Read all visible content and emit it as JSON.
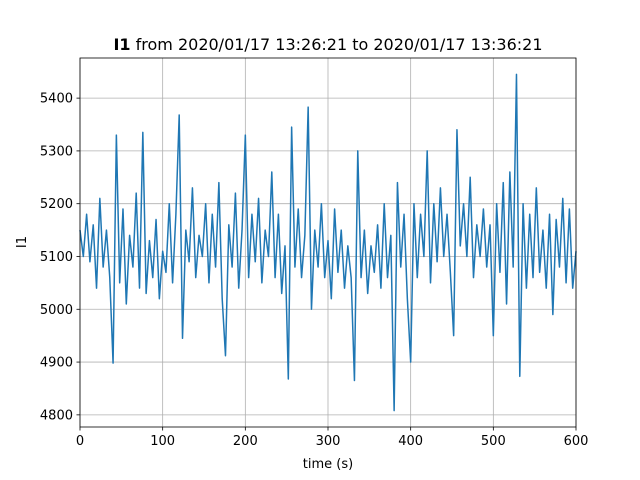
{
  "chart_data": {
    "type": "line",
    "title": {
      "bold": "I1",
      "text": "from 2020/01/17 13:26:21 to 2020/01/17 13:36:21"
    },
    "xlabel": "time (s)",
    "ylabel": "I1",
    "x": [
      0,
      4,
      8,
      12,
      16,
      20,
      24,
      28,
      32,
      36,
      40,
      44,
      48,
      52,
      56,
      60,
      64,
      68,
      72,
      76,
      80,
      84,
      88,
      92,
      96,
      100,
      104,
      108,
      112,
      116,
      120,
      124,
      128,
      132,
      136,
      140,
      144,
      148,
      152,
      156,
      160,
      164,
      168,
      172,
      176,
      180,
      184,
      188,
      192,
      196,
      200,
      204,
      208,
      212,
      216,
      220,
      224,
      228,
      232,
      236,
      240,
      244,
      248,
      252,
      256,
      260,
      264,
      268,
      272,
      276,
      280,
      284,
      288,
      292,
      296,
      300,
      304,
      308,
      312,
      316,
      320,
      324,
      328,
      332,
      336,
      340,
      344,
      348,
      352,
      356,
      360,
      364,
      368,
      372,
      376,
      380,
      384,
      388,
      392,
      396,
      400,
      404,
      408,
      412,
      416,
      420,
      424,
      428,
      432,
      436,
      440,
      444,
      448,
      452,
      456,
      460,
      464,
      468,
      472,
      476,
      480,
      484,
      488,
      492,
      496,
      500,
      504,
      508,
      512,
      516,
      520,
      524,
      528,
      532,
      536,
      540,
      544,
      548,
      552,
      556,
      560,
      564,
      568,
      572,
      576,
      580,
      584,
      588,
      592,
      596,
      600
    ],
    "series": [
      {
        "name": "I1",
        "color": "#1f77b4",
        "values": [
          5150,
          5100,
          5180,
          5090,
          5160,
          5040,
          5210,
          5080,
          5150,
          5060,
          4898,
          5330,
          5050,
          5190,
          5010,
          5140,
          5080,
          5220,
          5040,
          5335,
          5030,
          5130,
          5060,
          5170,
          5020,
          5110,
          5070,
          5200,
          5050,
          5180,
          5368,
          4945,
          5150,
          5090,
          5230,
          5060,
          5140,
          5100,
          5200,
          5050,
          5180,
          5080,
          5240,
          5020,
          4912,
          5160,
          5080,
          5220,
          5040,
          5150,
          5330,
          5060,
          5180,
          5090,
          5210,
          5050,
          5150,
          5100,
          5260,
          5060,
          5180,
          5030,
          5120,
          4868,
          5345,
          5080,
          5190,
          5060,
          5140,
          5383,
          5000,
          5150,
          5080,
          5200,
          5060,
          5130,
          5020,
          5190,
          5070,
          5150,
          5040,
          5120,
          5060,
          4865,
          5300,
          5060,
          5150,
          5030,
          5120,
          5070,
          5160,
          5040,
          5200,
          5060,
          5140,
          4808,
          5240,
          5080,
          5180,
          5020,
          4900,
          5200,
          5060,
          5180,
          5100,
          5300,
          5050,
          5200,
          5090,
          5230,
          5100,
          5180,
          5070,
          4950,
          5340,
          5120,
          5200,
          5100,
          5250,
          5060,
          5160,
          5100,
          5190,
          5080,
          5160,
          4950,
          5200,
          5070,
          5240,
          5010,
          5260,
          5080,
          5445,
          4873,
          5200,
          5040,
          5180,
          5060,
          5230,
          5070,
          5150,
          5040,
          5180,
          4990,
          5170,
          5080,
          5210,
          5050,
          5190,
          5040,
          5110
        ]
      }
    ],
    "xlim": [
      0,
      600
    ],
    "xticks": [
      0,
      100,
      200,
      300,
      400,
      500,
      600
    ],
    "ylim": [
      4777,
      5476
    ],
    "yticks": [
      4800,
      4900,
      5000,
      5100,
      5200,
      5300,
      5400
    ],
    "grid": true
  }
}
